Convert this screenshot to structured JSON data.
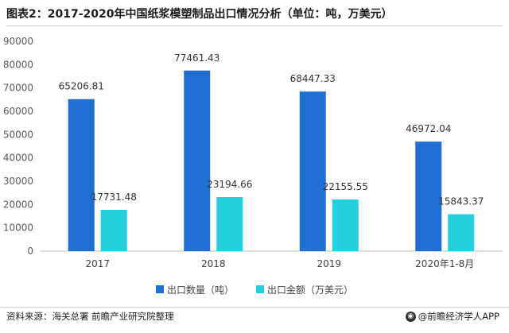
{
  "title": "图表2：2017-2020年中国纸浆模塑制品出口情况分析（单位：吨，万美元）",
  "source": "资料来源：海关总署 前瞻产业研究院整理",
  "brand": "@前瞻经济学人APP",
  "colors": {
    "series1": "#1f6ed4",
    "series2": "#22d0de",
    "axis": "#bfbfbf",
    "text": "#595959"
  },
  "chart_data": {
    "type": "bar",
    "categories": [
      "2017",
      "2018",
      "2019",
      "2020年1-8月"
    ],
    "series": [
      {
        "name": "出口数量（吨）",
        "values": [
          65206.81,
          77461.43,
          68447.33,
          46972.04
        ],
        "labels": [
          "65206.81",
          "77461.43",
          "68447.33",
          "46972.04"
        ]
      },
      {
        "name": "出口金额（万美元）",
        "values": [
          17731.48,
          23194.66,
          22155.55,
          15843.37
        ],
        "labels": [
          "17731.48",
          "23194.66",
          "22155.55",
          "15843.37"
        ]
      }
    ],
    "yticks": [
      "0",
      "10000",
      "20000",
      "30000",
      "40000",
      "50000",
      "60000",
      "70000",
      "80000",
      "90000"
    ],
    "ylim": [
      0,
      90000
    ],
    "grid": false,
    "legend": "bottom"
  }
}
